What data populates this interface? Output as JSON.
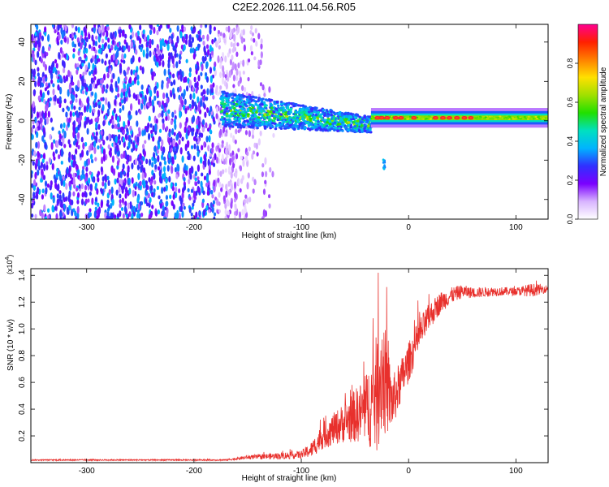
{
  "title": "C2E2.2026.111.04.56.R05",
  "chart_data": [
    {
      "type": "heatmap",
      "name": "spectrogram",
      "xlabel": "Height of straight line (km)",
      "ylabel": "Frequency (Hz)",
      "xlim": [
        -352,
        130
      ],
      "ylim": [
        -50,
        49
      ],
      "xticks": [
        -300,
        -200,
        -100,
        0,
        100
      ],
      "yticks": [
        -40,
        -20,
        0,
        20,
        40
      ],
      "grid": false,
      "colorbar": {
        "label": "Normalized spectral amplitude",
        "range": [
          0.0,
          1.0
        ],
        "ticks": [
          "0.0",
          "0.2",
          "0.4",
          "0.6",
          "0.8"
        ],
        "colors": [
          "#ffffff",
          "#d8b4ff",
          "#7a00ff",
          "#3030ff",
          "#00b4ff",
          "#00e0c0",
          "#20e000",
          "#a0e000",
          "#ffe000",
          "#ff8000",
          "#ff2000",
          "#ff0090"
        ]
      },
      "features": [
        {
          "label": "broadband noise",
          "x_range": [
            -352,
            -120
          ],
          "freq_range": [
            -50,
            49
          ],
          "amplitude": 0.25
        },
        {
          "label": "converging signal",
          "x_range": [
            -175,
            -35
          ],
          "freq_center": [
            6,
            -2
          ],
          "amplitude": 0.45
        },
        {
          "label": "transient",
          "x": -23,
          "freq_range": [
            -25,
            -18
          ],
          "amplitude": 0.3
        },
        {
          "label": "carrier line",
          "x_range": [
            -35,
            130
          ],
          "freq": 1.5,
          "amplitude": 0.6
        },
        {
          "label": "peaks on carrier",
          "x": [
            -29,
            -25,
            -20,
            -12,
            -7,
            5,
            25,
            32,
            38,
            45,
            52,
            58
          ],
          "freq": 1.5,
          "amplitude": 0.95
        }
      ]
    },
    {
      "type": "line",
      "name": "snr",
      "xlabel": "Height of straight line (km)",
      "ylabel": "SNR (10 * v/v)",
      "scale_label": "(x10",
      "scale_exp": "4",
      "scale_tail": ")",
      "xlim": [
        -352,
        130
      ],
      "ylim": [
        0,
        1.45
      ],
      "xticks": [
        -300,
        -200,
        -100,
        0,
        100
      ],
      "yticks": [
        0.2,
        0.4,
        0.6,
        0.8,
        1.0,
        1.2,
        1.4
      ],
      "color": "#e8302c",
      "grid": false,
      "series": [
        {
          "name": "SNR",
          "x": [
            -352,
            -300,
            -250,
            -200,
            -170,
            -150,
            -120,
            -100,
            -90,
            -80,
            -70,
            -60,
            -50,
            -40,
            -30,
            -25,
            -20,
            -15,
            -10,
            -5,
            0,
            5,
            10,
            20,
            30,
            40,
            50,
            60,
            80,
            100,
            115,
            130
          ],
          "y": [
            0.02,
            0.02,
            0.02,
            0.02,
            0.02,
            0.04,
            0.05,
            0.06,
            0.1,
            0.2,
            0.25,
            0.3,
            0.35,
            0.4,
            0.5,
            0.7,
            0.55,
            0.45,
            0.55,
            0.65,
            0.75,
            0.85,
            0.95,
            1.1,
            1.2,
            1.25,
            1.28,
            1.27,
            1.28,
            1.28,
            1.29,
            1.3
          ],
          "noise": [
            0.005,
            0.005,
            0.005,
            0.005,
            0.005,
            0.015,
            0.025,
            0.03,
            0.06,
            0.1,
            0.12,
            0.15,
            0.2,
            0.25,
            0.45,
            0.5,
            0.35,
            0.2,
            0.18,
            0.16,
            0.15,
            0.14,
            0.13,
            0.1,
            0.08,
            0.06,
            0.05,
            0.04,
            0.035,
            0.03,
            0.05,
            0.025
          ]
        }
      ]
    }
  ]
}
